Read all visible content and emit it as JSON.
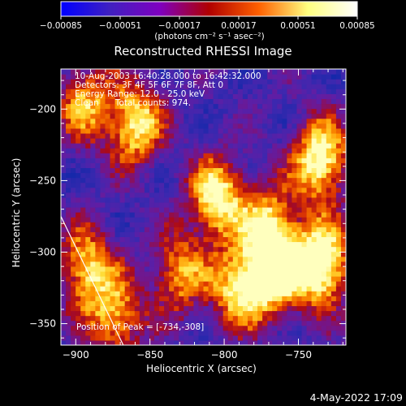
{
  "colorbar": {
    "tick_labels": [
      "-0.00085",
      "-0.00051",
      "-0.00017",
      "0.00017",
      "0.00051",
      "0.00085"
    ],
    "units_label": "(photons cm⁻² s⁻¹ asec⁻²)",
    "colors": [
      "#0000ff",
      "#4020c0",
      "#7f00c0",
      "#b00000",
      "#ff6000",
      "#ffff80",
      "#ffffff"
    ]
  },
  "chart_data": {
    "type": "heatmap",
    "title": "Reconstructed RHESSI Image",
    "xlabel": "Heliocentric X (arcsec)",
    "ylabel": "Heliocentric Y (arcsec)",
    "xlim": [
      -910,
      -718
    ],
    "ylim": [
      -365,
      -172
    ],
    "xticks": [
      -900,
      -850,
      -800,
      -750
    ],
    "xtick_labels": [
      "-900",
      "-850",
      "-800",
      "-750"
    ],
    "yticks": [
      -200,
      -250,
      -300,
      -350
    ],
    "ytick_labels": [
      "-200",
      "-250",
      "-300",
      "-350"
    ],
    "colorbar_range": [
      -0.00085,
      0.00085
    ],
    "bright_regions": [
      {
        "x": -860,
        "y": -210,
        "intensity": 0.8
      },
      {
        "x": -894,
        "y": -195,
        "intensity": 0.6
      },
      {
        "x": -805,
        "y": -262,
        "intensity": 0.85
      },
      {
        "x": -735,
        "y": -235,
        "intensity": 0.9
      },
      {
        "x": -734,
        "y": -308,
        "intensity": 1.0
      },
      {
        "x": -765,
        "y": -313,
        "intensity": 0.95
      },
      {
        "x": -790,
        "y": -325,
        "intensity": 0.75
      },
      {
        "x": -830,
        "y": -315,
        "intensity": 0.6
      },
      {
        "x": -893,
        "y": -310,
        "intensity": 0.7
      },
      {
        "x": -873,
        "y": -345,
        "intensity": 0.65
      },
      {
        "x": -770,
        "y": -280,
        "intensity": 0.65
      }
    ],
    "annotations": [
      "10-Aug-2003 16:40:28.000 to 16:42:32.000",
      "Detectors: 3F 4F 5F 6F 7F 8F, Att 0",
      "Energy Range: 12.0 - 25.0 keV",
      "Clean      Total counts: 974."
    ],
    "peak_label": "Position of Peak = [-734,-308]",
    "limb_line": {
      "from": [
        -910,
        -275
      ],
      "to": [
        -868,
        -365
      ]
    }
  },
  "footer": {
    "date": "4-May-2022 17:09"
  }
}
